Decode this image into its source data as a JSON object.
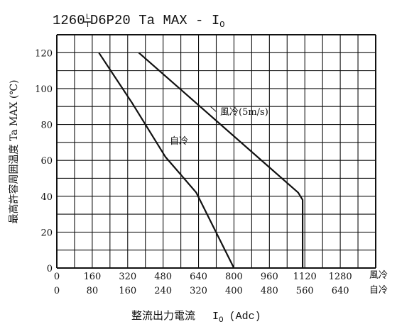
{
  "title": {
    "prefix": "1260",
    "frac_top": "L",
    "frac_bottom": "T",
    "rest": "D6P20 Ta MAX - I",
    "sub": "O"
  },
  "y_axis": {
    "label": "最高許容周囲温度 Ta MAX (℃)",
    "ticks": [
      "0",
      "20",
      "40",
      "60",
      "80",
      "100",
      "120"
    ]
  },
  "x_axis": {
    "row1_ticks": [
      "0",
      "160",
      "320",
      "480",
      "640",
      "800",
      "960",
      "1120",
      "1280"
    ],
    "row1_name": "風冷",
    "row2_ticks": [
      "0",
      "80",
      "160",
      "240",
      "320",
      "400",
      "480",
      "560",
      "640"
    ],
    "row2_name": "自冷",
    "label": "整流出力電流",
    "label_unit_main": "I",
    "label_unit_sub": "O",
    "label_unit_tail": "(Adc)"
  },
  "chart_data": {
    "type": "line",
    "title": "1260 L/T D6P20 Ta MAX - IO",
    "xlabel": "整流出力電流 IO (Adc)",
    "ylabel": "最高許容周囲温度 Ta MAX (℃)",
    "ylim": [
      0,
      130
    ],
    "grid": true,
    "x_scales": [
      {
        "name": "風冷",
        "xlim": [
          0,
          1440
        ],
        "ticks": [
          0,
          160,
          320,
          480,
          640,
          800,
          960,
          1120,
          1280
        ]
      },
      {
        "name": "自冷",
        "xlim": [
          0,
          720
        ],
        "ticks": [
          0,
          80,
          160,
          240,
          320,
          400,
          480,
          560,
          640
        ]
      }
    ],
    "series": [
      {
        "name": "自冷",
        "x_scale": "自冷",
        "points": [
          [
            95,
            120
          ],
          [
            170,
            92
          ],
          [
            245,
            62
          ],
          [
            315,
            42
          ],
          [
            400,
            0
          ]
        ],
        "color": "#111111"
      },
      {
        "name": "風冷(5m/s)",
        "x_scale": "風冷",
        "points": [
          [
            370,
            120
          ],
          [
            1090,
            42
          ],
          [
            1110,
            38
          ],
          [
            1110,
            0
          ]
        ],
        "color": "#111111"
      }
    ]
  }
}
